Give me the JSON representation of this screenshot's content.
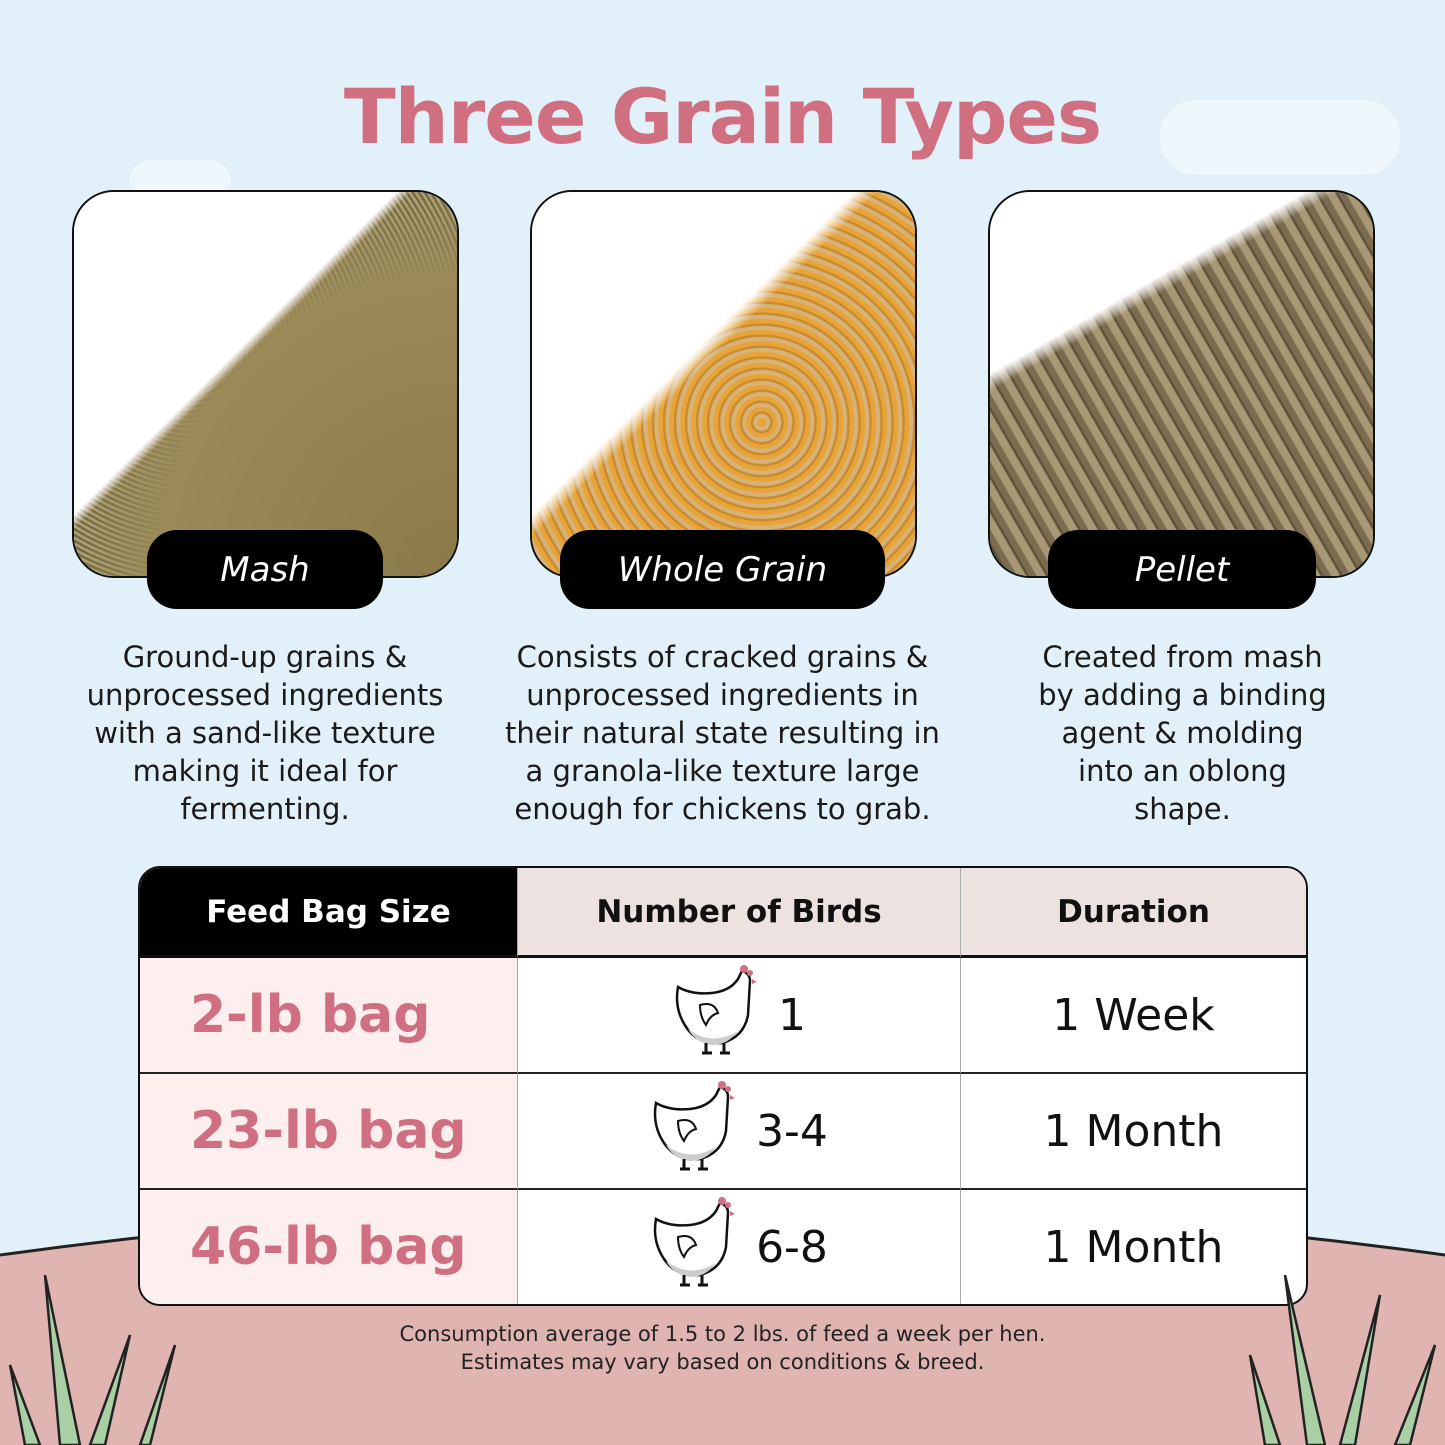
{
  "title": "Three Grain Types",
  "grains": [
    {
      "label": "Mash",
      "description": "Ground-up grains & unprocessed ingredients with a sand-like texture making it ideal for fermenting."
    },
    {
      "label": "Whole Grain",
      "description": "Consists of cracked grains & unprocessed ingredients in their natural state resulting in a granola-like texture large enough for chickens to grab."
    },
    {
      "label": "Pellet",
      "description": "Created from mash by adding a binding agent & molding into an oblong shape."
    }
  ],
  "table": {
    "headers": [
      "Feed Bag Size",
      "Number of Birds",
      "Duration"
    ],
    "rows": [
      {
        "size": "2-lb bag",
        "birds": "1",
        "duration": "1 Week",
        "icon": "chicken-icon"
      },
      {
        "size": "23-lb bag",
        "birds": "3-4",
        "duration": "1 Month",
        "icon": "chicken-icon"
      },
      {
        "size": "46-lb bag",
        "birds": "6-8",
        "duration": "1 Month",
        "icon": "chicken-icon"
      }
    ]
  },
  "footnote": [
    "Consumption average of 1.5 to 2 lbs. of feed a week per hen.",
    "Estimates may vary based on conditions & breed."
  ],
  "colors": {
    "accent": "#d06f7f",
    "background": "#e2f1f9",
    "hill": "#e0b4b0"
  }
}
